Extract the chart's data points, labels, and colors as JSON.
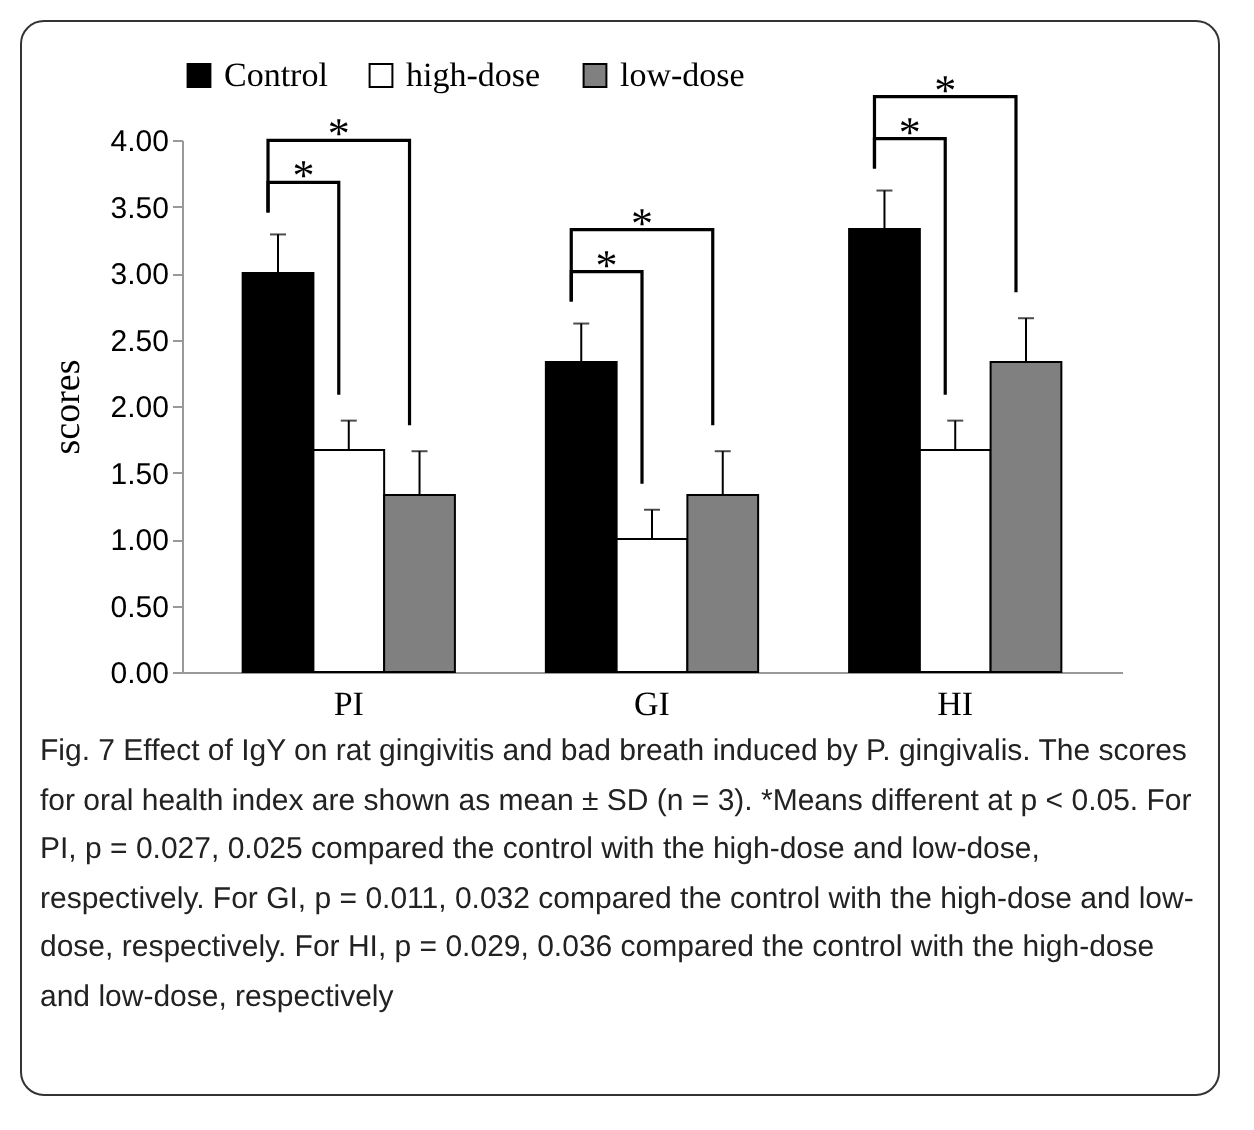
{
  "chart_data": {
    "type": "bar",
    "ylabel": "scores",
    "categories": [
      "PI",
      "GI",
      "HI"
    ],
    "series": [
      {
        "name": "Control",
        "color": "#000000",
        "values": [
          3.0,
          2.33,
          3.33
        ],
        "errors": [
          0.29,
          0.29,
          0.29
        ]
      },
      {
        "name": "high-dose",
        "color": "#ffffff",
        "values": [
          1.67,
          1.0,
          1.67
        ],
        "errors": [
          0.22,
          0.22,
          0.22
        ]
      },
      {
        "name": "low-dose",
        "color": "#808080",
        "values": [
          1.33,
          1.33,
          2.33
        ],
        "errors": [
          0.33,
          0.33,
          0.33
        ]
      }
    ],
    "ylim": [
      0,
      4
    ],
    "yticks": [
      {
        "value": 0,
        "label": "0.00"
      },
      {
        "value": 0.5,
        "label": "0.50"
      },
      {
        "value": 1,
        "label": "1.00"
      },
      {
        "value": 1.5,
        "label": "1.50"
      },
      {
        "value": 2,
        "label": "2.00"
      },
      {
        "value": 2.5,
        "label": "2.50"
      },
      {
        "value": 3,
        "label": "3.00"
      },
      {
        "value": 3.5,
        "label": "3.50"
      },
      {
        "value": 4,
        "label": "4.00"
      }
    ],
    "grid": false,
    "legend": "top",
    "annotations": [
      "*",
      "*",
      "*",
      "*",
      "*",
      "*",
      "Fig. 7  Effect of IgY on rat gingivitis and bad breath induced by P. gingivalis. The scores for oral health index are shown as mean ± SD (n = 3). *Means different at p < 0.05. For PI, p = 0.027, 0.025 compared the control with the high-dose and low-dose, respectively. For GI, p = 0.011, 0.032 compared the control with the high-dose and low-dose, respectively. For HI, p = 0.029, 0.036 compared the control with the high-dose and low-dose, respectively"
    ]
  }
}
